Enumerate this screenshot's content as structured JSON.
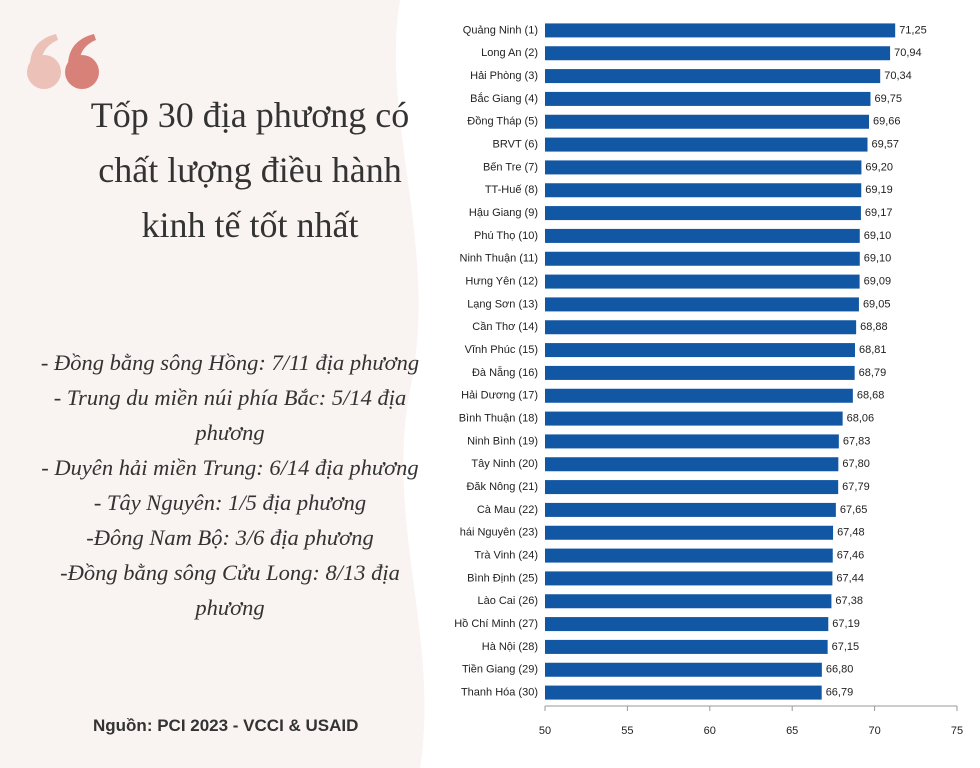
{
  "chart_data": {
    "type": "bar",
    "title": "Tốp 30 địa phương có chất lượng điều hành kinh tế tốt nhất",
    "annotations": [
      "- Đồng bằng sông Hồng: 7/11 địa phương",
      "- Trung du miền núi phía Bắc: 5/14 địa phương",
      "- Duyên hải miền Trung: 6/14 địa phương",
      "- Tây Nguyên: 1/5 địa phương",
      "-Đông Nam Bộ: 3/6 địa phương",
      "-Đồng bằng sông Cửu Long: 8/13 địa phương"
    ],
    "source": "Nguồn: PCI 2023 - VCCI & USAID",
    "categories": [
      "Quảng Ninh (1)",
      "Long An (2)",
      "Hải Phòng (3)",
      "Bắc Giang (4)",
      "Đồng Tháp (5)",
      "BRVT (6)",
      "Bến Tre (7)",
      "TT-Huế (8)",
      "Hậu Giang (9)",
      "Phú Thọ (10)",
      "Ninh Thuận (11)",
      "Hưng Yên (12)",
      "Lạng Sơn (13)",
      "Cần Thơ (14)",
      "Vĩnh Phúc (15)",
      "Đà Nẵng (16)",
      "Hải Dương (17)",
      "Bình Thuận (18)",
      "Ninh Bình (19)",
      "Tây Ninh (20)",
      "Đăk Nông (21)",
      "Cà Mau (22)",
      "hái Nguyên (23)",
      "Trà Vinh (24)",
      "Bình Định (25)",
      "Lào Cai (26)",
      "Hồ Chí Minh (27)",
      "Hà Nội (28)",
      "Tiền Giang (29)",
      "Thanh Hóa (30)"
    ],
    "values": [
      71.25,
      70.94,
      70.34,
      69.75,
      69.66,
      69.57,
      69.2,
      69.19,
      69.17,
      69.1,
      69.1,
      69.09,
      69.05,
      68.88,
      68.81,
      68.79,
      68.68,
      68.06,
      67.83,
      67.8,
      67.79,
      67.65,
      67.48,
      67.46,
      67.44,
      67.38,
      67.19,
      67.15,
      66.8,
      66.79
    ],
    "value_labels": [
      "71,25",
      "70,94",
      "70,34",
      "69,75",
      "69,66",
      "69,57",
      "69,20",
      "69,19",
      "69,17",
      "69,10",
      "69,10",
      "69,09",
      "69,05",
      "68,88",
      "68,81",
      "68,79",
      "68,68",
      "68,06",
      "67,83",
      "67,80",
      "67,79",
      "67,65",
      "67,48",
      "67,46",
      "67,44",
      "67,38",
      "67,19",
      "67,15",
      "66,80",
      "66,79"
    ],
    "color": "#1257a3",
    "xlim": [
      50,
      75
    ],
    "xticks": [
      50,
      55,
      60,
      65,
      70,
      75
    ]
  }
}
